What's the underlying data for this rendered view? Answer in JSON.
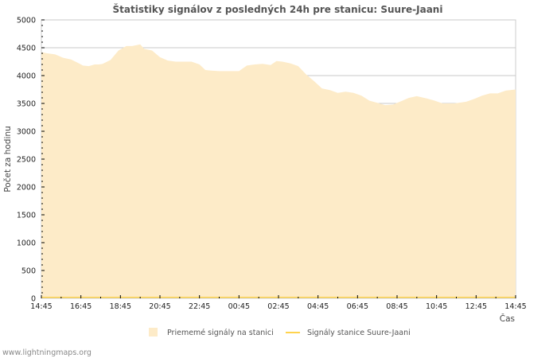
{
  "chart_data": {
    "type": "area",
    "title": "Štatistiky signálov z posledných 24h pre stanicu: Suure-Jaani",
    "xlabel": "Čas",
    "ylabel": "Počet za hodinu",
    "ylim": [
      0,
      5000
    ],
    "xlim_hours": [
      0,
      24
    ],
    "yticks": [
      "0",
      "500",
      "1000",
      "1500",
      "2000",
      "2500",
      "3000",
      "3500",
      "4000",
      "4500",
      "5000"
    ],
    "xticks": [
      "14:45",
      "16:45",
      "18:45",
      "20:45",
      "22:45",
      "00:45",
      "02:45",
      "04:45",
      "06:45",
      "08:45",
      "10:45",
      "12:45",
      "14:45"
    ],
    "grid": true,
    "legend_position": "bottom",
    "series": [
      {
        "name": "Priememé signály na stanici",
        "color": "#fdebc8",
        "type": "area",
        "x_hours": [
          0,
          0.3,
          0.7,
          1.1,
          1.5,
          1.9,
          2.1,
          2.4,
          2.7,
          2.9,
          3.1,
          3.5,
          3.9,
          4.3,
          4.6,
          5.0,
          5.2,
          5.6,
          6.0,
          6.4,
          6.8,
          7.6,
          8.0,
          8.3,
          8.6,
          9.0,
          10.0,
          10.4,
          10.8,
          11.2,
          11.6,
          11.9,
          12.2,
          12.6,
          13.0,
          13.4,
          13.8,
          14.2,
          14.6,
          15.0,
          15.4,
          15.8,
          16.2,
          16.6,
          17.0,
          17.4,
          17.8,
          18.2,
          18.6,
          19.0,
          19.5,
          19.9,
          20.3,
          20.9,
          21.5,
          21.9,
          22.3,
          22.7,
          23.1,
          23.5,
          24
        ],
        "values": [
          4420,
          4400,
          4380,
          4320,
          4290,
          4220,
          4180,
          4170,
          4200,
          4200,
          4210,
          4280,
          4450,
          4530,
          4530,
          4560,
          4480,
          4450,
          4330,
          4270,
          4250,
          4250,
          4200,
          4100,
          4090,
          4080,
          4080,
          4180,
          4200,
          4210,
          4190,
          4260,
          4250,
          4220,
          4170,
          4020,
          3900,
          3770,
          3740,
          3690,
          3710,
          3690,
          3640,
          3550,
          3510,
          3470,
          3480,
          3540,
          3600,
          3630,
          3590,
          3550,
          3500,
          3500,
          3530,
          3580,
          3640,
          3680,
          3680,
          3730,
          3750
        ]
      },
      {
        "name": "Signály stanice Suure-Jaani",
        "color": "#ffd34d",
        "type": "line",
        "x_hours": [
          0,
          24
        ],
        "values": [
          0,
          0
        ]
      }
    ]
  },
  "watermark": "www.lightningmaps.org"
}
